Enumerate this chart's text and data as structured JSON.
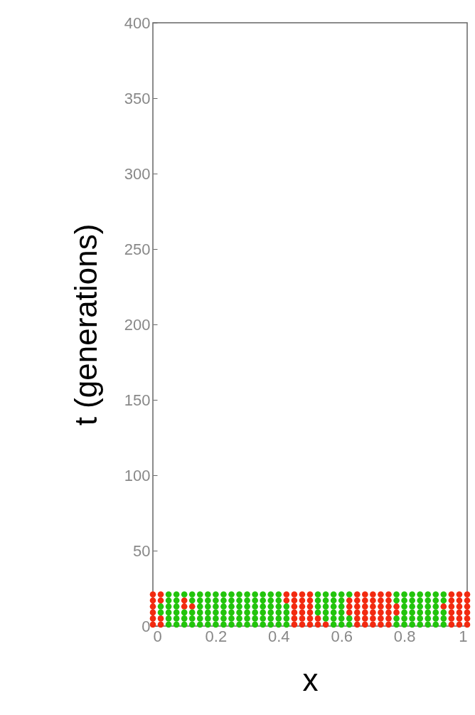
{
  "chart_data": {
    "type": "scatter",
    "xlabel": "x",
    "ylabel": "t (generations)",
    "xlim": [
      0,
      1
    ],
    "xticks": [
      0,
      0.2,
      0.4,
      0.6,
      0.8,
      1
    ],
    "ylim": [
      0,
      400
    ],
    "yticks": [
      0,
      50,
      100,
      150,
      200,
      250,
      300,
      350,
      400
    ],
    "grid": false,
    "marker": "circle",
    "series": [
      {
        "color": "#f22a10",
        "x": [
          0,
          0,
          0,
          0,
          0,
          0,
          0.025,
          0.025,
          0.025,
          0.025,
          0.1,
          0.1,
          0.125,
          0.425,
          0.425,
          0.45,
          0.45,
          0.45,
          0.45,
          0.45,
          0.45,
          0.475,
          0.475,
          0.475,
          0.475,
          0.475,
          0.475,
          0.5,
          0.5,
          0.5,
          0.5,
          0.5,
          0.5,
          0.525,
          0.525,
          0.55,
          0.625,
          0.625,
          0.625,
          0.65,
          0.65,
          0.65,
          0.65,
          0.65,
          0.65,
          0.675,
          0.675,
          0.675,
          0.675,
          0.675,
          0.675,
          0.7,
          0.7,
          0.7,
          0.7,
          0.7,
          0.7,
          0.725,
          0.725,
          0.725,
          0.725,
          0.725,
          0.725,
          0.75,
          0.75,
          0.75,
          0.75,
          0.75,
          0.75,
          0.775,
          0.775,
          0.925,
          0.95,
          0.95,
          0.95,
          0.95,
          0.95,
          0.95,
          0.975,
          0.975,
          0.975,
          0.975,
          0.975,
          0.975,
          1,
          1,
          1,
          1,
          1,
          1
        ],
        "values": [
          1,
          5,
          9,
          13,
          17,
          21,
          1,
          5,
          17,
          21,
          13,
          17,
          13,
          17,
          21,
          1,
          5,
          9,
          13,
          17,
          21,
          1,
          5,
          9,
          13,
          17,
          21,
          1,
          5,
          9,
          13,
          17,
          21,
          1,
          5,
          1,
          9,
          13,
          17,
          1,
          5,
          9,
          13,
          17,
          21,
          1,
          5,
          9,
          13,
          17,
          21,
          1,
          5,
          9,
          13,
          17,
          21,
          1,
          5,
          9,
          13,
          17,
          21,
          1,
          5,
          9,
          13,
          17,
          21,
          9,
          13,
          13,
          1,
          5,
          9,
          13,
          17,
          21,
          1,
          5,
          9,
          13,
          17,
          21,
          1,
          5,
          9,
          13,
          17,
          21
        ]
      },
      {
        "color": "#22c40c",
        "x": [
          0.025,
          0.025,
          0.05,
          0.05,
          0.05,
          0.05,
          0.05,
          0.05,
          0.075,
          0.075,
          0.075,
          0.075,
          0.075,
          0.075,
          0.1,
          0.1,
          0.1,
          0.1,
          0.125,
          0.125,
          0.125,
          0.125,
          0.125,
          0.15,
          0.15,
          0.15,
          0.15,
          0.15,
          0.15,
          0.175,
          0.175,
          0.175,
          0.175,
          0.175,
          0.175,
          0.2,
          0.2,
          0.2,
          0.2,
          0.2,
          0.2,
          0.225,
          0.225,
          0.225,
          0.225,
          0.225,
          0.225,
          0.25,
          0.25,
          0.25,
          0.25,
          0.25,
          0.25,
          0.275,
          0.275,
          0.275,
          0.275,
          0.275,
          0.275,
          0.3,
          0.3,
          0.3,
          0.3,
          0.3,
          0.3,
          0.325,
          0.325,
          0.325,
          0.325,
          0.325,
          0.325,
          0.35,
          0.35,
          0.35,
          0.35,
          0.35,
          0.35,
          0.375,
          0.375,
          0.375,
          0.375,
          0.375,
          0.375,
          0.4,
          0.4,
          0.4,
          0.4,
          0.4,
          0.4,
          0.425,
          0.425,
          0.425,
          0.425,
          0.525,
          0.525,
          0.525,
          0.525,
          0.55,
          0.55,
          0.55,
          0.55,
          0.55,
          0.575,
          0.575,
          0.575,
          0.575,
          0.575,
          0.575,
          0.6,
          0.6,
          0.6,
          0.6,
          0.6,
          0.6,
          0.625,
          0.625,
          0.625,
          0.775,
          0.775,
          0.775,
          0.775,
          0.8,
          0.8,
          0.8,
          0.8,
          0.8,
          0.8,
          0.825,
          0.825,
          0.825,
          0.825,
          0.825,
          0.825,
          0.85,
          0.85,
          0.85,
          0.85,
          0.85,
          0.85,
          0.875,
          0.875,
          0.875,
          0.875,
          0.875,
          0.875,
          0.9,
          0.9,
          0.9,
          0.9,
          0.9,
          0.9,
          0.925,
          0.925,
          0.925,
          0.925,
          0.925
        ],
        "values": [
          9,
          13,
          1,
          5,
          9,
          13,
          17,
          21,
          1,
          5,
          9,
          13,
          17,
          21,
          1,
          5,
          9,
          21,
          1,
          5,
          9,
          17,
          21,
          1,
          5,
          9,
          13,
          17,
          21,
          1,
          5,
          9,
          13,
          17,
          21,
          1,
          5,
          9,
          13,
          17,
          21,
          1,
          5,
          9,
          13,
          17,
          21,
          1,
          5,
          9,
          13,
          17,
          21,
          1,
          5,
          9,
          13,
          17,
          21,
          1,
          5,
          9,
          13,
          17,
          21,
          1,
          5,
          9,
          13,
          17,
          21,
          1,
          5,
          9,
          13,
          17,
          21,
          1,
          5,
          9,
          13,
          17,
          21,
          1,
          5,
          9,
          13,
          17,
          21,
          1,
          5,
          9,
          13,
          9,
          13,
          17,
          21,
          5,
          9,
          13,
          17,
          21,
          1,
          5,
          9,
          13,
          17,
          21,
          1,
          5,
          9,
          13,
          17,
          21,
          1,
          5,
          21,
          1,
          5,
          17,
          21,
          1,
          5,
          9,
          13,
          17,
          21,
          1,
          5,
          9,
          13,
          17,
          21,
          1,
          5,
          9,
          13,
          17,
          21,
          1,
          5,
          9,
          13,
          17,
          21,
          1,
          5,
          9,
          13,
          17,
          21,
          1,
          5,
          9,
          17,
          21
        ]
      }
    ]
  }
}
